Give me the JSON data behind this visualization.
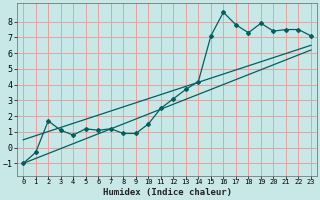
{
  "xlabel": "Humidex (Indice chaleur)",
  "ylabel": "",
  "xlim": [
    -0.5,
    23.5
  ],
  "ylim": [
    -1.8,
    9.2
  ],
  "yticks": [
    -1,
    0,
    1,
    2,
    3,
    4,
    5,
    6,
    7,
    8
  ],
  "xticks": [
    0,
    1,
    2,
    3,
    4,
    5,
    6,
    7,
    8,
    9,
    10,
    11,
    12,
    13,
    14,
    15,
    16,
    17,
    18,
    19,
    20,
    21,
    22,
    23
  ],
  "bg_color": "#c8e8e8",
  "grid_color": "#e8a0a0",
  "line_color": "#006060",
  "line1_x": [
    0,
    1,
    2,
    3,
    4,
    5,
    6,
    7,
    8,
    9,
    10,
    11,
    12,
    13,
    14,
    15,
    16,
    17,
    18,
    19,
    20,
    21,
    22,
    23
  ],
  "line1_y": [
    -1.0,
    -0.3,
    1.7,
    1.1,
    0.8,
    1.2,
    1.1,
    1.2,
    0.9,
    0.9,
    1.5,
    2.5,
    3.1,
    3.7,
    4.2,
    7.1,
    8.6,
    7.8,
    7.3,
    7.9,
    7.4,
    7.5,
    7.5,
    7.1
  ],
  "line2_x": [
    0,
    23
  ],
  "line2_y": [
    -1.0,
    6.2
  ],
  "line3_x": [
    0,
    23
  ],
  "line3_y": [
    0.5,
    6.5
  ],
  "xlabel_fontsize": 6.5,
  "tick_fontsize_x": 5,
  "tick_fontsize_y": 6
}
